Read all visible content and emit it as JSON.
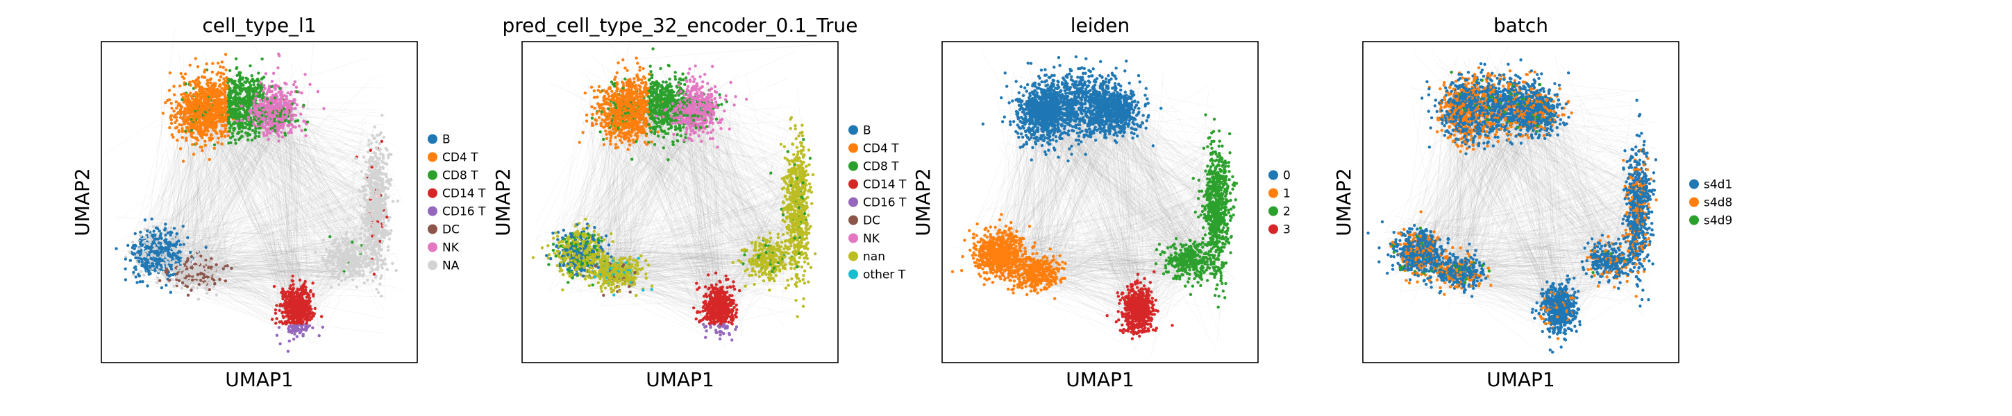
{
  "chart_data": [
    {
      "type": "scatter",
      "title": "cell_type_l1",
      "xlabel": "UMAP1",
      "ylabel": "UMAP2",
      "grid": false,
      "legend_placement": "right",
      "series": [
        {
          "name": "B",
          "color": "#1f77b4"
        },
        {
          "name": "CD4 T",
          "color": "#ff7f0e"
        },
        {
          "name": "CD8 T",
          "color": "#2ca02c"
        },
        {
          "name": "CD14 T",
          "color": "#d62728"
        },
        {
          "name": "CD16 T",
          "color": "#9467bd"
        },
        {
          "name": "DC",
          "color": "#8c564b"
        },
        {
          "name": "NK",
          "color": "#e377c2"
        },
        {
          "name": "NA",
          "color": "#d3d3d3"
        }
      ]
    },
    {
      "type": "scatter",
      "title": "pred_cell_type_32_encoder_0.1_True",
      "xlabel": "UMAP1",
      "ylabel": "UMAP2",
      "grid": false,
      "legend_placement": "right",
      "series": [
        {
          "name": "B",
          "color": "#1f77b4"
        },
        {
          "name": "CD4 T",
          "color": "#ff7f0e"
        },
        {
          "name": "CD8 T",
          "color": "#2ca02c"
        },
        {
          "name": "CD14 T",
          "color": "#d62728"
        },
        {
          "name": "CD16 T",
          "color": "#9467bd"
        },
        {
          "name": "DC",
          "color": "#8c564b"
        },
        {
          "name": "NK",
          "color": "#e377c2"
        },
        {
          "name": "nan",
          "color": "#bcbd22"
        },
        {
          "name": "other T",
          "color": "#17becf"
        }
      ]
    },
    {
      "type": "scatter",
      "title": "leiden",
      "xlabel": "UMAP1",
      "ylabel": "UMAP2",
      "grid": false,
      "legend_placement": "right",
      "series": [
        {
          "name": "0",
          "color": "#1f77b4"
        },
        {
          "name": "1",
          "color": "#ff7f0e"
        },
        {
          "name": "2",
          "color": "#2ca02c"
        },
        {
          "name": "3",
          "color": "#d62728"
        }
      ]
    },
    {
      "type": "scatter",
      "title": "batch",
      "xlabel": "UMAP1",
      "ylabel": "UMAP2",
      "grid": false,
      "legend_placement": "right",
      "series": [
        {
          "name": "s4d1",
          "color": "#1f77b4"
        },
        {
          "name": "s4d8",
          "color": "#ff7f0e"
        },
        {
          "name": "s4d9",
          "color": "#2ca02c"
        }
      ]
    }
  ]
}
